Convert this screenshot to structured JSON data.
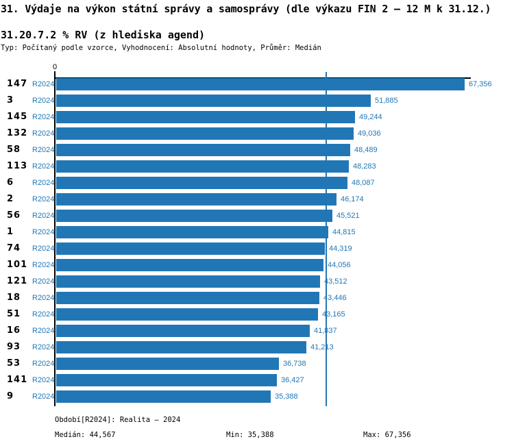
{
  "title": "31. Výdaje na výkon státní správy a samosprávy (dle výkazu FIN 2 – 12 M k 31.12.)",
  "subtitle": "31.20.7.2 % RV (z hlediska agend)",
  "meta_line": "Typ: Počítaný podle vzorce, Vyhodnocení: Absolutní hodnoty, Průměr: Medián",
  "colors": {
    "bar": "#2177b5",
    "blue_text": "#2177b5",
    "axis": "#000000",
    "median_line": "#2177b5"
  },
  "chart_data": {
    "type": "bar",
    "orientation": "horizontal",
    "axis_origin_label": "0",
    "series_label": "R2024",
    "categories": [
      "147",
      "3",
      "145",
      "132",
      "58",
      "113",
      "6",
      "2",
      "56",
      "1",
      "74",
      "101",
      "121",
      "18",
      "51",
      "16",
      "93",
      "53",
      "141",
      "9"
    ],
    "values": [
      67356,
      51885,
      49244,
      49036,
      48489,
      48283,
      48087,
      46174,
      45521,
      44815,
      44319,
      44056,
      43512,
      43446,
      43165,
      41837,
      41213,
      36738,
      36427,
      35388
    ],
    "display_values": [
      "67,356",
      "51,885",
      "49,244",
      "49,036",
      "48,489",
      "48,283",
      "48,087",
      "46,174",
      "45,521",
      "44,815",
      "44,319",
      "44,056",
      "43,512",
      "43,446",
      "43,165",
      "41,837",
      "41,213",
      "36,738",
      "36,427",
      "35,388"
    ],
    "xlim": [
      0,
      67356
    ],
    "median_value": 44567,
    "grid": "median-line-only",
    "legend_position": "none"
  },
  "footer": {
    "period": "Období[R2024]: Realita – 2024",
    "median": "Medián: 44,567",
    "min": "Min: 35,388",
    "max": "Max: 67,356"
  }
}
